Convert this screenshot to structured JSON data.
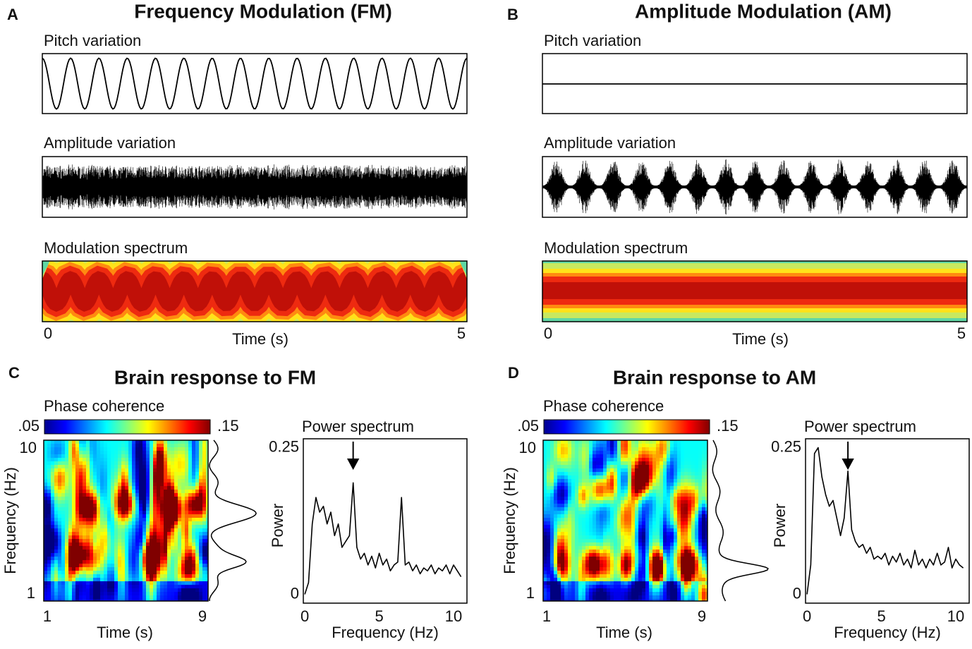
{
  "panels": [
    {
      "letter": "A",
      "title": "Frequency Modulation (FM)",
      "rows": [
        "Pitch variation",
        "Amplitude variation",
        "Modulation spectrum"
      ],
      "xticks": [
        0,
        5
      ],
      "xlabel": "Time (s)"
    },
    {
      "letter": "B",
      "title": "Amplitude Modulation (AM)",
      "rows": [
        "Pitch variation",
        "Amplitude variation",
        "Modulation spectrum"
      ],
      "xticks": [
        0,
        5
      ],
      "xlabel": "Time (s)"
    }
  ],
  "brain": [
    {
      "letter": "C",
      "title": "Brain response to FM",
      "colorbar_label": "Phase coherence",
      "colorbar_ticks": [
        {
          "value": 0.05,
          "label": ".05"
        },
        {
          "value": 0.15,
          "label": ".15"
        }
      ],
      "ylabel": "Frequency (Hz)",
      "yticks": [
        1,
        10
      ],
      "xlabel": "Time (s)",
      "xticks": [
        1,
        9
      ]
    },
    {
      "letter": "D",
      "title": "Brain response to AM",
      "colorbar_label": "Phase coherence",
      "colorbar_ticks": [
        {
          "value": 0.05,
          "label": ".05"
        },
        {
          "value": 0.15,
          "label": ".15"
        }
      ],
      "ylabel": "Frequency (Hz)",
      "yticks": [
        1,
        10
      ],
      "xlabel": "Time (s)",
      "xticks": [
        1,
        9
      ]
    }
  ],
  "chart_data": [
    {
      "type": "line",
      "title": "Power spectrum",
      "xlabel": "Frequency (Hz)",
      "ylabel": "Power",
      "color": "#000000",
      "xlim": [
        -0.1,
        10.9
      ],
      "ylim": [
        -0.015,
        0.265
      ],
      "xticks": [
        0,
        5,
        10
      ],
      "yticks": [
        0,
        0.25
      ],
      "arrow_x": 3.25,
      "x": [
        0,
        0.25,
        0.5,
        0.75,
        1,
        1.25,
        1.5,
        1.75,
        2,
        2.25,
        2.5,
        2.75,
        3,
        3.25,
        3.5,
        3.75,
        4,
        4.25,
        4.5,
        4.75,
        5,
        5.25,
        5.5,
        5.75,
        6,
        6.25,
        6.5,
        6.75,
        7,
        7.25,
        7.5,
        7.75,
        8,
        8.25,
        8.5,
        8.75,
        9,
        9.25,
        9.5,
        9.75,
        10,
        10.25,
        10.5
      ],
      "values": [
        0,
        0.02,
        0.12,
        0.165,
        0.14,
        0.15,
        0.12,
        0.14,
        0.1,
        0.12,
        0.08,
        0.09,
        0.1,
        0.19,
        0.08,
        0.06,
        0.07,
        0.05,
        0.065,
        0.045,
        0.07,
        0.05,
        0.06,
        0.04,
        0.05,
        0.055,
        0.165,
        0.05,
        0.055,
        0.04,
        0.05,
        0.035,
        0.045,
        0.04,
        0.05,
        0.035,
        0.045,
        0.04,
        0.05,
        0.035,
        0.05,
        0.04,
        0.03
      ]
    },
    {
      "type": "line",
      "title": "Power spectrum",
      "xlabel": "Frequency (Hz)",
      "ylabel": "Power",
      "color": "#000000",
      "xlim": [
        -0.1,
        10.9
      ],
      "ylim": [
        -0.015,
        0.265
      ],
      "xticks": [
        0,
        5,
        10
      ],
      "yticks": [
        0,
        0.25
      ],
      "arrow_x": 2.75,
      "x": [
        0,
        0.25,
        0.5,
        0.75,
        1,
        1.25,
        1.5,
        1.75,
        2,
        2.25,
        2.5,
        2.75,
        3,
        3.25,
        3.5,
        3.75,
        4,
        4.25,
        4.5,
        4.75,
        5,
        5.25,
        5.5,
        5.75,
        6,
        6.25,
        6.5,
        6.75,
        7,
        7.25,
        7.5,
        7.75,
        8,
        8.25,
        8.5,
        8.75,
        9,
        9.25,
        9.5,
        9.75,
        10,
        10.25,
        10.5
      ],
      "values": [
        0,
        0.05,
        0.24,
        0.25,
        0.2,
        0.17,
        0.15,
        0.16,
        0.13,
        0.1,
        0.13,
        0.21,
        0.11,
        0.09,
        0.08,
        0.085,
        0.07,
        0.08,
        0.06,
        0.065,
        0.06,
        0.07,
        0.05,
        0.065,
        0.055,
        0.07,
        0.05,
        0.06,
        0.045,
        0.075,
        0.05,
        0.06,
        0.045,
        0.06,
        0.05,
        0.07,
        0.05,
        0.055,
        0.08,
        0.045,
        0.06,
        0.05,
        0.045
      ]
    }
  ]
}
